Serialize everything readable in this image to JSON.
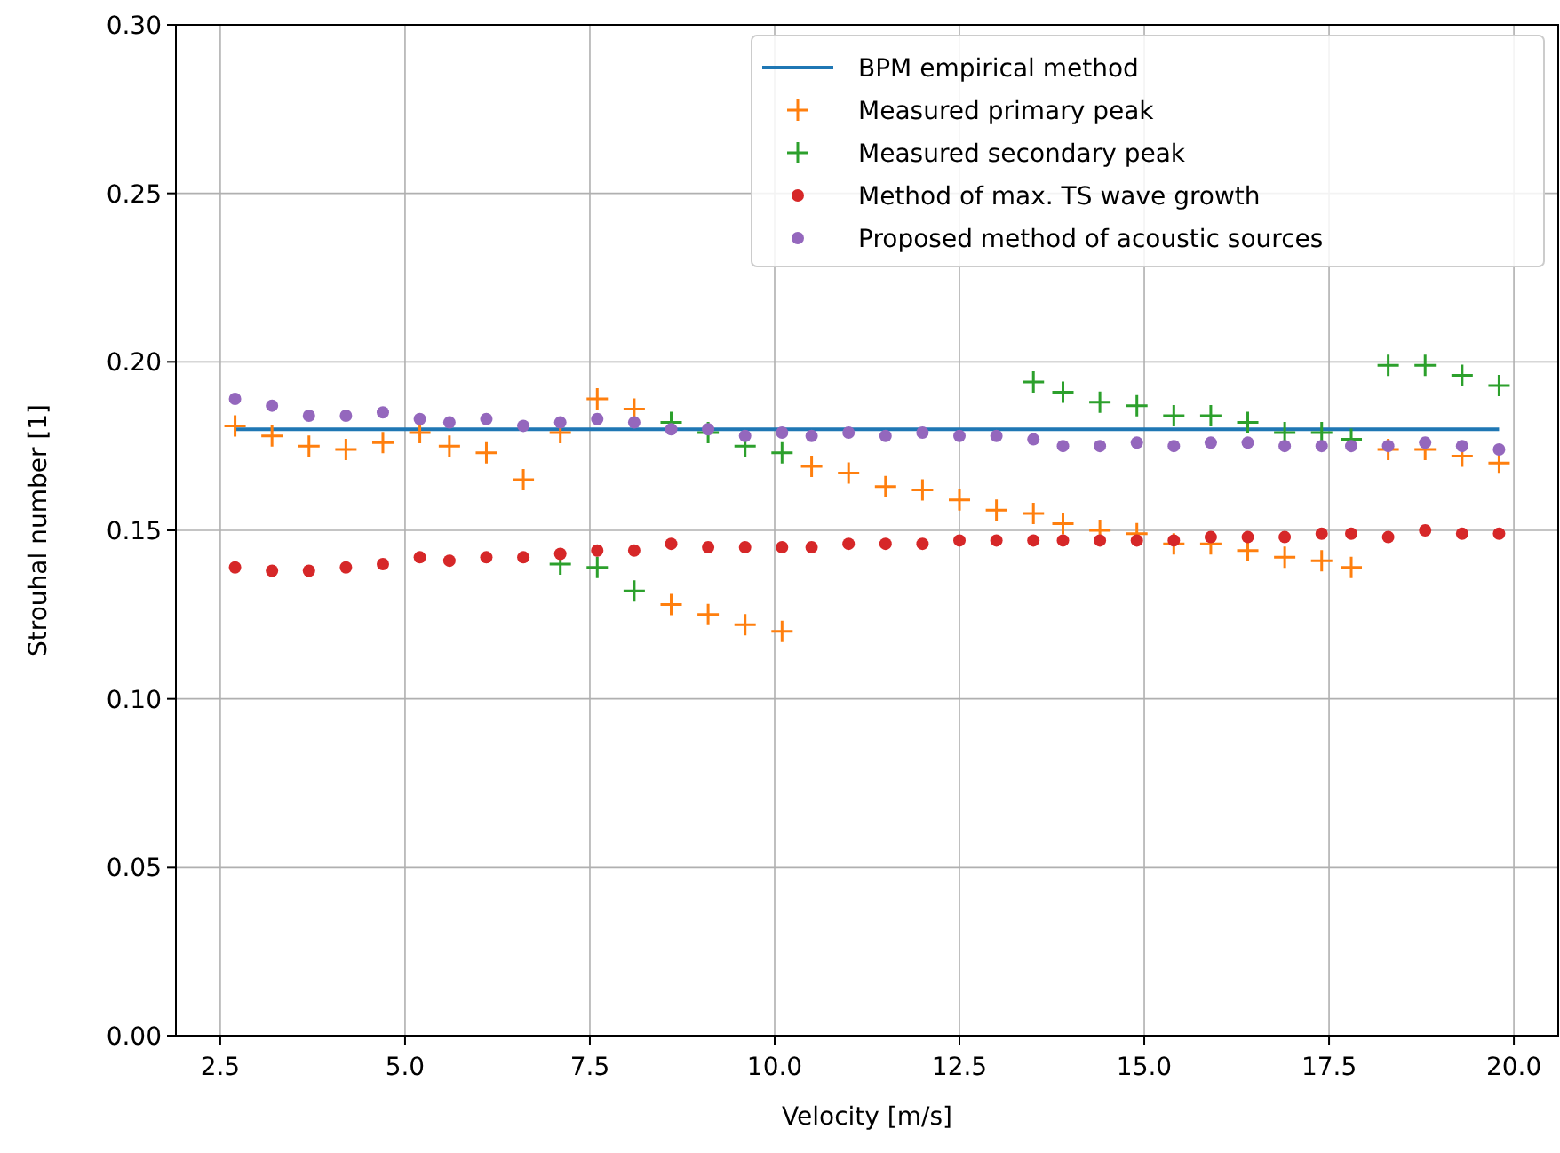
{
  "chart_data": {
    "type": "scatter",
    "xlabel": "Velocity [m/s]",
    "ylabel": "Strouhal number [1]",
    "x": [
      2.7,
      3.2,
      3.7,
      4.2,
      4.7,
      5.2,
      5.6,
      6.1,
      6.6,
      7.1,
      7.6,
      8.1,
      8.6,
      9.1,
      9.6,
      10.1,
      10.5,
      11.0,
      11.5,
      12.0,
      12.5,
      13.0,
      13.5,
      13.9,
      14.4,
      14.9,
      15.4,
      15.9,
      16.4,
      16.9,
      17.4,
      17.8,
      18.3,
      18.8,
      19.3,
      19.8
    ],
    "series": [
      {
        "name": "BPM empirical method",
        "type": "line",
        "color": "#1f77b4",
        "x": [
          2.7,
          19.8
        ],
        "values": [
          0.18,
          0.18
        ],
        "marker": "none"
      },
      {
        "name": "Measured primary peak",
        "color": "#ff7f0e",
        "marker": "cross",
        "values": [
          0.181,
          0.178,
          0.175,
          0.174,
          0.176,
          0.179,
          0.175,
          0.173,
          0.165,
          0.179,
          0.189,
          0.186,
          0.128,
          0.125,
          0.122,
          0.12,
          0.169,
          0.167,
          0.163,
          0.162,
          0.159,
          0.156,
          0.155,
          0.152,
          0.15,
          0.149,
          0.146,
          0.146,
          0.144,
          0.142,
          0.141,
          0.139,
          0.174,
          0.174,
          0.172,
          0.17
        ]
      },
      {
        "name": "Measured secondary peak",
        "color": "#2ca02c",
        "marker": "cross",
        "x": [
          7.1,
          7.6,
          8.1,
          8.6,
          9.1,
          9.6,
          10.1,
          13.5,
          13.9,
          14.4,
          14.9,
          15.4,
          15.9,
          16.4,
          16.9,
          17.4,
          17.8,
          18.3,
          18.8,
          19.3,
          19.8
        ],
        "values": [
          0.14,
          0.139,
          0.132,
          0.182,
          0.179,
          0.175,
          0.173,
          0.194,
          0.191,
          0.188,
          0.187,
          0.184,
          0.184,
          0.182,
          0.179,
          0.179,
          0.177,
          0.199,
          0.199,
          0.196,
          0.193
        ]
      },
      {
        "name": "Method of max. TS wave growth",
        "color": "#d62728",
        "marker": "circle",
        "values": [
          0.139,
          0.138,
          0.138,
          0.139,
          0.14,
          0.142,
          0.141,
          0.142,
          0.142,
          0.143,
          0.144,
          0.144,
          0.146,
          0.145,
          0.145,
          0.145,
          0.145,
          0.146,
          0.146,
          0.146,
          0.147,
          0.147,
          0.147,
          0.147,
          0.147,
          0.147,
          0.147,
          0.148,
          0.148,
          0.148,
          0.149,
          0.149,
          0.148,
          0.15,
          0.149,
          0.149
        ]
      },
      {
        "name": "Proposed method of acoustic sources",
        "color": "#9467bd",
        "marker": "circle",
        "values": [
          0.189,
          0.187,
          0.184,
          0.184,
          0.185,
          0.183,
          0.182,
          0.183,
          0.181,
          0.182,
          0.183,
          0.182,
          0.18,
          0.18,
          0.178,
          0.179,
          0.178,
          0.179,
          0.178,
          0.179,
          0.178,
          0.178,
          0.177,
          0.175,
          0.175,
          0.176,
          0.175,
          0.176,
          0.176,
          0.175,
          0.175,
          0.175,
          0.175,
          0.176,
          0.175,
          0.174
        ]
      }
    ],
    "xlim": [
      1.9,
      20.6
    ],
    "xticks": [
      {
        "value": 2.5,
        "label": "2.5"
      },
      {
        "value": 5,
        "label": "5.0"
      },
      {
        "value": 7.5,
        "label": "7.5"
      },
      {
        "value": 10,
        "label": "10.0"
      },
      {
        "value": 12.5,
        "label": "12.5"
      },
      {
        "value": 15,
        "label": "15.0"
      },
      {
        "value": 17.5,
        "label": "17.5"
      },
      {
        "value": 20,
        "label": "20.0"
      }
    ],
    "ylim": [
      0,
      0.3
    ],
    "yticks": [
      {
        "value": 0,
        "label": "0.00"
      },
      {
        "value": 0.05,
        "label": "0.05"
      },
      {
        "value": 0.1,
        "label": "0.10"
      },
      {
        "value": 0.15,
        "label": "0.15"
      },
      {
        "value": 0.2,
        "label": "0.20"
      },
      {
        "value": 0.25,
        "label": "0.25"
      },
      {
        "value": 0.3,
        "label": "0.30"
      }
    ],
    "grid": true,
    "legend": "top right"
  }
}
